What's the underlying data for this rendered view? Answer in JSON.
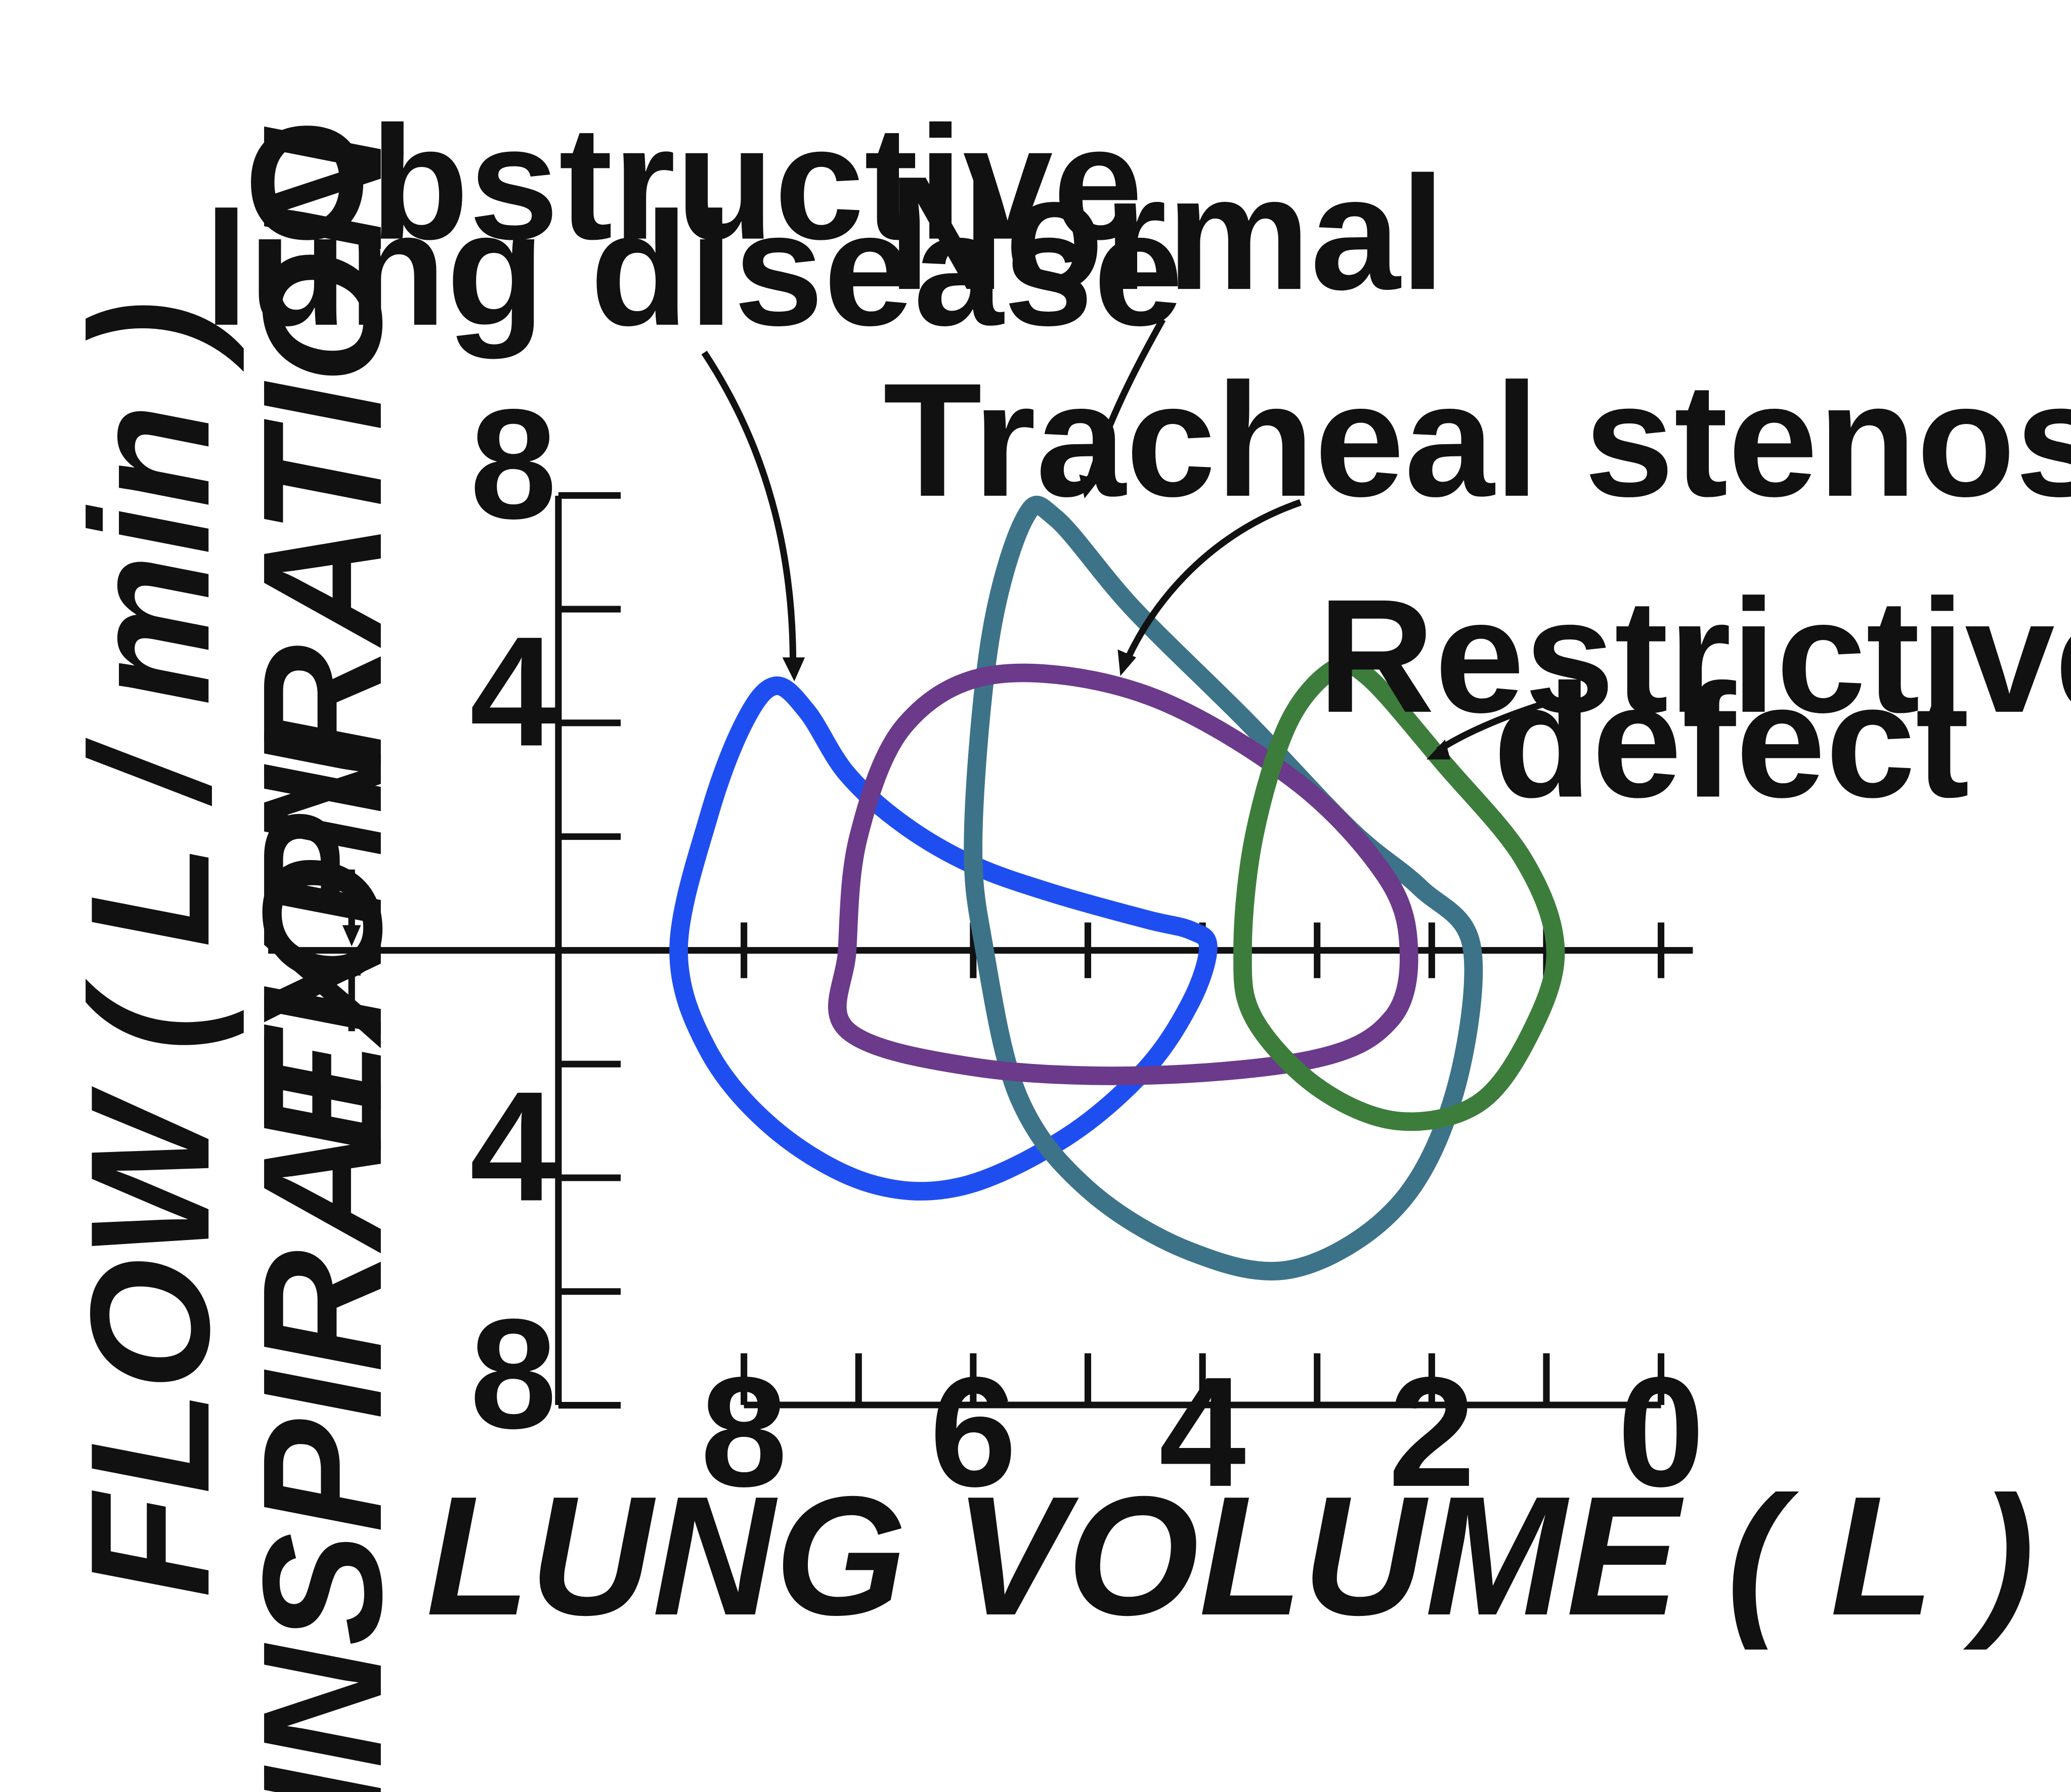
{
  "chart_data": {
    "type": "line",
    "title": "",
    "xlabel": "LUNG VOLUME ( L )",
    "ylabel": "FLOW ( L / min )",
    "ylabel_expiration": "EXPIRATION",
    "ylabel_inspiration": "INSPIRATION",
    "xlim": [
      8,
      0
    ],
    "ylim": [
      -8,
      8
    ],
    "x_tick_labels": [
      "8",
      "6",
      "4",
      "2",
      "0"
    ],
    "x_tick_values": [
      8,
      6,
      4,
      2,
      0
    ],
    "x_minor_ticks": [
      7,
      5,
      3,
      1
    ],
    "y_tick_labels": [
      {
        "value": 8,
        "label": "8"
      },
      {
        "value": 4,
        "label": "4"
      },
      {
        "value": -4,
        "label": "4"
      },
      {
        "value": -8,
        "label": "8"
      }
    ],
    "y_minor_ticks": [
      6,
      2,
      -2,
      -6
    ],
    "grid": false,
    "series": [
      {
        "name": "Obstructive lung disease",
        "color": "#1f4ef0",
        "points": [
          [
            8.57,
            0
          ],
          [
            8.3,
            2.4
          ],
          [
            8.0,
            4.0
          ],
          [
            7.73,
            4.65
          ],
          [
            7.45,
            4.2
          ],
          [
            7.1,
            3.1
          ],
          [
            6.6,
            2.2
          ],
          [
            6.0,
            1.5
          ],
          [
            5.3,
            1.0
          ],
          [
            4.5,
            0.55
          ],
          [
            4.1,
            0.35
          ],
          [
            3.95,
            0.05
          ],
          [
            4.1,
            -0.9
          ],
          [
            4.5,
            -2.1
          ],
          [
            5.2,
            -3.3
          ],
          [
            6.1,
            -4.15
          ],
          [
            6.9,
            -4.1
          ],
          [
            7.7,
            -3.2
          ],
          [
            8.3,
            -1.8
          ],
          [
            8.57,
            0
          ]
        ]
      },
      {
        "name": "Normal",
        "color": "#3c7389",
        "points": [
          [
            5.9,
            0
          ],
          [
            6.0,
            2.0
          ],
          [
            5.85,
            5.5
          ],
          [
            5.55,
            7.6
          ],
          [
            5.28,
            7.6
          ],
          [
            4.6,
            6.0
          ],
          [
            3.6,
            4.0
          ],
          [
            2.7,
            2.1
          ],
          [
            2.1,
            1.1
          ],
          [
            1.65,
            0.05
          ],
          [
            1.8,
            -2.5
          ],
          [
            2.3,
            -4.5
          ],
          [
            3.2,
            -5.6
          ],
          [
            4.1,
            -5.3
          ],
          [
            5.0,
            -4.2
          ],
          [
            5.6,
            -2.6
          ],
          [
            5.9,
            0
          ]
        ]
      },
      {
        "name": "Tracheal stenosis",
        "color": "#6b3a8a",
        "points": [
          [
            7.1,
            0
          ],
          [
            7.0,
            2.0
          ],
          [
            6.6,
            3.95
          ],
          [
            5.8,
            4.85
          ],
          [
            4.5,
            4.5
          ],
          [
            3.2,
            3.0
          ],
          [
            2.4,
            1.3
          ],
          [
            2.2,
            0
          ],
          [
            2.35,
            -1.2
          ],
          [
            3.0,
            -1.9
          ],
          [
            4.5,
            -2.2
          ],
          [
            6.0,
            -2.05
          ],
          [
            7.1,
            -1.4
          ],
          [
            7.1,
            0
          ]
        ]
      },
      {
        "name": "Restrictive defect",
        "color": "#3d7d3c",
        "points": [
          [
            3.65,
            0
          ],
          [
            3.55,
            2.0
          ],
          [
            3.25,
            4.0
          ],
          [
            2.85,
            4.95
          ],
          [
            2.55,
            4.8
          ],
          [
            1.9,
            3.3
          ],
          [
            1.2,
            1.6
          ],
          [
            0.92,
            0
          ],
          [
            1.15,
            -1.5
          ],
          [
            1.6,
            -2.7
          ],
          [
            2.3,
            -3.0
          ],
          [
            3.0,
            -2.4
          ],
          [
            3.55,
            -1.2
          ],
          [
            3.65,
            0
          ]
        ]
      }
    ],
    "annotations": [
      {
        "series": "Obstructive lung disease",
        "lines": [
          "Obstructive",
          "lung disease"
        ]
      },
      {
        "series": "Normal",
        "lines": [
          "Normal"
        ]
      },
      {
        "series": "Tracheal stenosis",
        "lines": [
          "Tracheal stenosis"
        ]
      },
      {
        "series": "Restrictive defect",
        "lines": [
          "Restrictive",
          "defect"
        ]
      }
    ]
  }
}
